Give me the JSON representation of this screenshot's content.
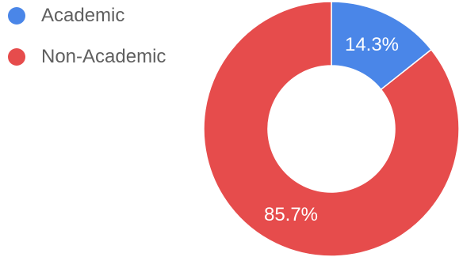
{
  "chart_data": {
    "type": "pie",
    "donut": true,
    "legend_position": "top-left",
    "categories": [
      "Academic",
      "Non-Academic"
    ],
    "values": [
      14.3,
      85.7
    ],
    "slice_labels": [
      "14.3%",
      "85.7%"
    ],
    "colors": [
      "#4a86e8",
      "#e64c4c"
    ]
  }
}
